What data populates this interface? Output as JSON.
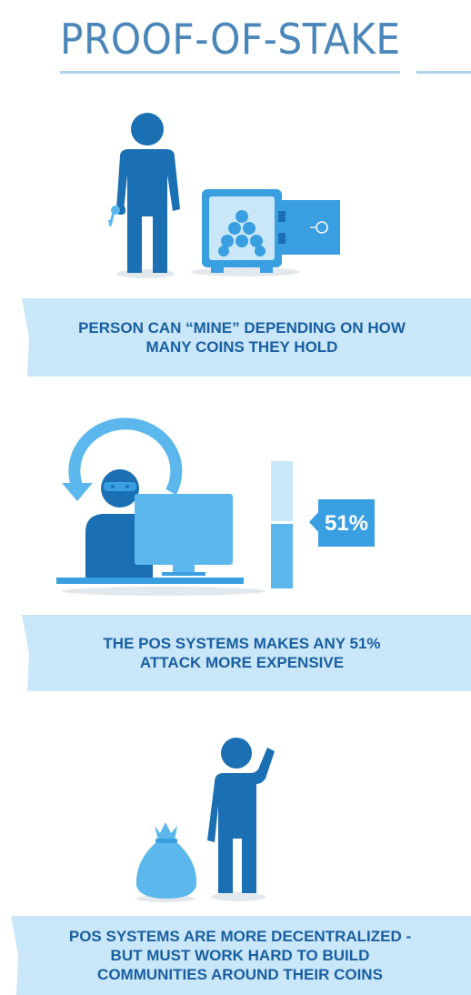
{
  "title": "PROOF-OF-STAKE",
  "sections": [
    {
      "caption_lines": [
        "PERSON CAN “MINE” DEPENDING ON HOW",
        "MANY COINS THEY HOLD"
      ]
    },
    {
      "badge": "51%",
      "caption_lines": [
        "THE POS SYSTEMS MAKES ANY 51%",
        "ATTACK MORE EXPENSIVE"
      ]
    },
    {
      "caption_lines": [
        "POS SYSTEMS ARE MORE DECENTRALIZED -",
        "BUT MUST WORK HARD TO BUILD",
        "COMMUNITIES AROUND THEIR COINS"
      ]
    }
  ],
  "colors": {
    "dark_blue": "#1b6fb3",
    "mid_blue": "#3a9fe0",
    "light_blue": "#5cb8ec",
    "banner_bg": "#c9e7f8",
    "caption_text": "#1a5fa1",
    "title_text": "#4a86b8",
    "shadow": "#e3e8ec"
  },
  "icons": [
    "person-with-key-icon",
    "safe-with-coins-icon",
    "hacker-at-computer-icon",
    "meter-bar-icon",
    "money-bag-icon",
    "confused-person-icon"
  ]
}
